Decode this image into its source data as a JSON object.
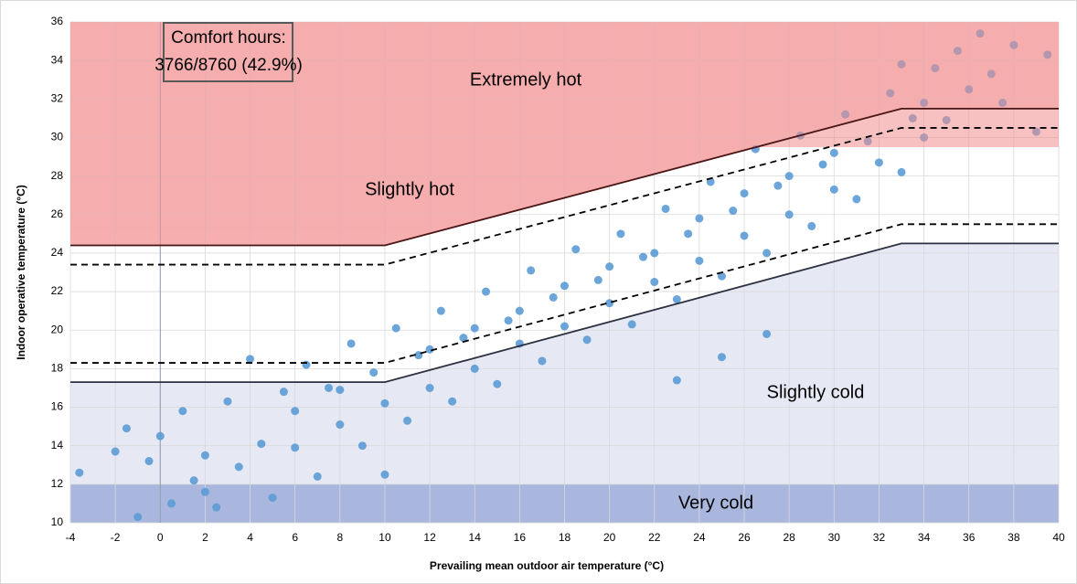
{
  "chart_data": {
    "type": "scatter",
    "x_label": "Prevailing mean outdoor air temperature (°C)",
    "y_label": "Indoor operative temperature (°C)",
    "annotation": [
      "Comfort hours:",
      "3766/8760 (42.9%)"
    ],
    "xlim": [
      -4,
      40
    ],
    "ylim": [
      10,
      36
    ],
    "xticks": [
      -4,
      -2,
      0,
      2,
      4,
      6,
      8,
      10,
      12,
      14,
      16,
      18,
      20,
      22,
      24,
      26,
      28,
      30,
      32,
      34,
      36,
      38,
      40
    ],
    "yticks": [
      10,
      12,
      14,
      16,
      18,
      20,
      22,
      24,
      26,
      28,
      30,
      32,
      34,
      36
    ],
    "grid": true,
    "zones": [
      {
        "name": "Extremely hot",
        "color": "#f18f8f",
        "ymin": 29.5
      },
      {
        "name": "Slightly hot",
        "color": "#fcd3d3"
      },
      {
        "name": "Slightly cold",
        "color": "#e6e8f4"
      },
      {
        "name": "Very cold",
        "color": "#a9b7df",
        "ymax": 12
      }
    ],
    "lines": [
      {
        "style": "solid",
        "color": "#4a1515",
        "x": [
          -4,
          10,
          33,
          40
        ],
        "y": [
          24.4,
          24.4,
          31.5,
          31.5
        ]
      },
      {
        "style": "dashed",
        "color": "#000000",
        "x": [
          -4,
          10,
          33,
          40
        ],
        "y": [
          23.4,
          23.4,
          30.5,
          30.5
        ]
      },
      {
        "style": "dashed",
        "color": "#000000",
        "x": [
          -4,
          10,
          33,
          40
        ],
        "y": [
          18.3,
          18.3,
          25.5,
          25.5
        ]
      },
      {
        "style": "solid",
        "color": "#2b3140",
        "x": [
          -4,
          10,
          33,
          40
        ],
        "y": [
          17.3,
          17.3,
          24.5,
          24.5
        ]
      }
    ],
    "series": [
      {
        "color": "#5b9bd5",
        "x": [
          -3.6,
          -2,
          -1.5,
          -1,
          -0.5,
          0,
          0.5,
          1,
          1.5,
          2,
          2.5,
          3,
          3.5,
          4,
          4.5,
          5,
          5.5,
          6,
          6.5,
          7,
          7.5,
          8,
          8.5,
          9,
          9.5,
          10,
          10.5,
          11,
          11.5,
          12,
          12.5,
          13,
          13.5,
          14,
          14.5,
          15,
          15.5,
          16,
          16.5,
          17,
          17.5,
          18,
          18.5,
          19,
          19.5,
          20,
          20.5,
          21,
          21.5,
          22,
          22.5,
          23,
          23.5,
          24,
          24.5,
          25,
          25.5,
          26,
          26.5,
          27,
          27.5,
          28,
          28.5,
          29,
          29.5,
          30,
          30.5,
          31,
          31.5,
          32,
          32.5,
          33,
          33.5,
          34,
          34.5,
          35,
          35.5,
          36,
          36.5,
          37,
          37.5,
          38,
          39,
          39.5,
          22,
          18,
          14,
          26,
          30,
          10,
          6,
          2,
          24,
          28,
          20,
          16,
          12,
          8,
          34,
          33,
          27,
          25,
          23
        ],
        "values": [
          12.6,
          13.7,
          14.9,
          10.3,
          13.2,
          14.5,
          11.0,
          15.8,
          12.2,
          13.5,
          10.8,
          16.3,
          12.9,
          18.5,
          14.1,
          11.3,
          16.8,
          13.9,
          18.2,
          12.4,
          17.0,
          15.1,
          19.3,
          14.0,
          17.8,
          16.2,
          20.1,
          15.3,
          18.7,
          17.0,
          21.0,
          16.3,
          19.6,
          18.0,
          22.0,
          17.2,
          20.5,
          19.3,
          23.1,
          18.4,
          21.7,
          20.2,
          24.2,
          19.5,
          22.6,
          21.4,
          25.0,
          20.3,
          23.8,
          22.5,
          26.3,
          21.6,
          25.0,
          23.6,
          27.7,
          22.8,
          26.2,
          24.9,
          29.4,
          24.0,
          27.5,
          26.0,
          30.1,
          25.4,
          28.6,
          27.3,
          31.2,
          26.8,
          29.8,
          28.7,
          32.3,
          28.2,
          31.0,
          30.0,
          33.6,
          30.9,
          34.5,
          32.5,
          35.4,
          33.3,
          31.8,
          34.8,
          30.3,
          34.3,
          24.0,
          22.3,
          20.1,
          27.1,
          29.2,
          12.5,
          15.8,
          11.6,
          25.8,
          28.0,
          23.3,
          21.0,
          19.0,
          16.9,
          31.8,
          33.8,
          19.8,
          18.6,
          17.4
        ]
      }
    ]
  }
}
